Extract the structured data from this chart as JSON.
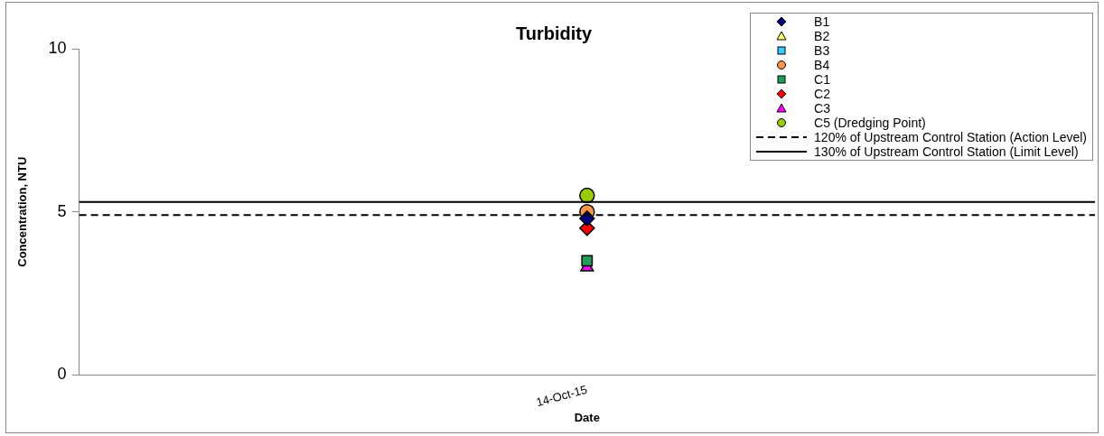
{
  "chart_data": {
    "type": "scatter",
    "title": "Turbidity",
    "xlabel": "Date",
    "ylabel": "Concentration, NTU",
    "categories": [
      null,
      null,
      null,
      "14-Oct-15",
      null,
      null,
      null
    ],
    "ylim": [
      0,
      10
    ],
    "yticks": [
      0,
      5,
      10
    ],
    "grid": false,
    "legend": "top right",
    "series": [
      {
        "name": "B1",
        "color": "#000080",
        "marker": "diamond",
        "values": [
          null,
          null,
          null,
          4.8,
          null,
          null,
          null
        ]
      },
      {
        "name": "B2",
        "color": "#ffff66",
        "marker": "triangle",
        "values": [
          null,
          null,
          null,
          null,
          null,
          null,
          null
        ]
      },
      {
        "name": "B3",
        "color": "#33ccff",
        "marker": "square",
        "values": [
          null,
          null,
          null,
          null,
          null,
          null,
          null
        ]
      },
      {
        "name": "B4",
        "color": "#f79646",
        "marker": "circle",
        "values": [
          null,
          null,
          null,
          5.0,
          null,
          null,
          null
        ]
      },
      {
        "name": "C1",
        "color": "#1f9e5a",
        "marker": "square",
        "values": [
          null,
          null,
          null,
          3.5,
          null,
          null,
          null
        ]
      },
      {
        "name": "C2",
        "color": "#ff0000",
        "marker": "diamond",
        "values": [
          null,
          null,
          null,
          4.5,
          null,
          null,
          null
        ]
      },
      {
        "name": "C3",
        "color": "#ff00ff",
        "marker": "triangle",
        "values": [
          null,
          null,
          null,
          3.3,
          null,
          null,
          null
        ]
      },
      {
        "name": "C5 (Dredging Point)",
        "color": "#99cc00",
        "marker": "circle",
        "values": [
          null,
          null,
          null,
          5.5,
          null,
          null,
          null
        ]
      }
    ],
    "ref_lines": [
      {
        "axis": "y",
        "value": 4.9,
        "label": "120% of Upstream Control Station (Action Level)",
        "color": "#000000",
        "line_style": "dashed"
      },
      {
        "axis": "y",
        "value": 5.3,
        "label": "130% of Upstream Control Station (Limit Level)",
        "color": "#000000",
        "line_style": "solid"
      }
    ]
  }
}
